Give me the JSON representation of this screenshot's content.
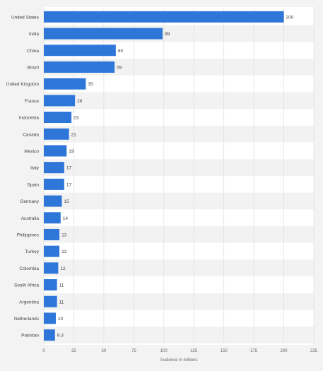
{
  "chart_data": {
    "type": "bar",
    "orientation": "horizontal",
    "categories": [
      "United States",
      "India",
      "China",
      "Brazil",
      "United Kingdom",
      "France",
      "Indonesia",
      "Canada",
      "Mexico",
      "Italy",
      "Spain",
      "Germany",
      "Australia",
      "Philippines",
      "Turkey",
      "Colombia",
      "South Africa",
      "Argentina",
      "Netherlands",
      "Pakistan"
    ],
    "values": [
      200,
      99,
      60,
      59,
      35,
      26,
      23,
      21,
      19,
      17,
      17,
      15,
      14,
      13,
      13,
      12,
      11,
      11,
      10,
      9.3
    ],
    "value_labels": [
      "200",
      "99",
      "60",
      "59",
      "35",
      "26",
      "23",
      "21",
      "19",
      "17",
      "17",
      "15",
      "14",
      "13",
      "13",
      "12",
      "11",
      "11",
      "10",
      "9.3"
    ],
    "title": "",
    "xlabel": "Audience in millions",
    "ylabel": "",
    "xlim": [
      0,
      225
    ],
    "xticks": [
      0,
      25,
      50,
      75,
      100,
      125,
      150,
      175,
      200,
      225
    ],
    "grid": "vertical",
    "legend": "none",
    "colors": {
      "bar": "#2e77d9",
      "background": "#f3f3f3",
      "band_light": "#ffffff",
      "band_dark": "#f2f2f2",
      "grid": "#e1e1e1",
      "text": "#444444",
      "tick_text": "#666666"
    }
  }
}
